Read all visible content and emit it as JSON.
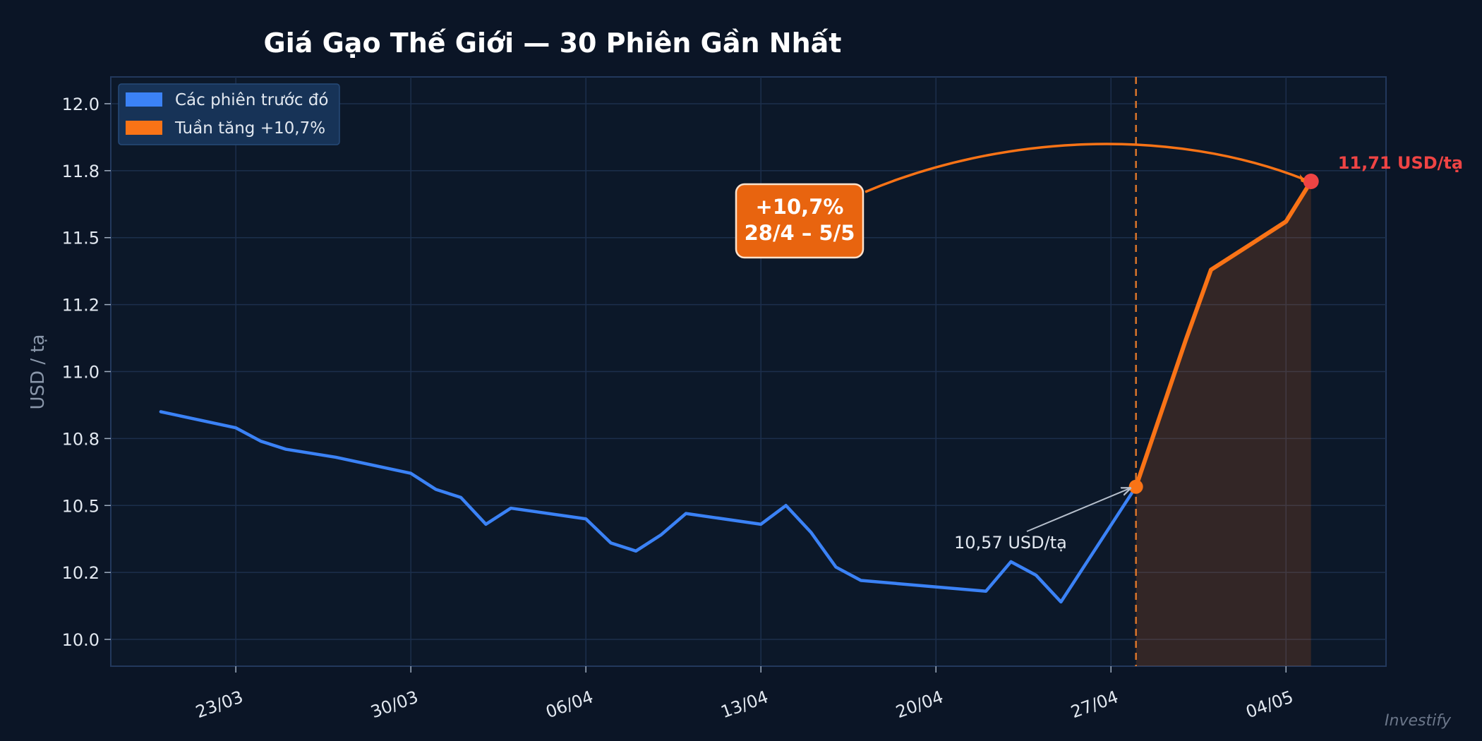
{
  "chart_data": {
    "type": "line",
    "title": "Giá Gạo Thế Giới — 30 Phiên Gần Nhất",
    "ylabel": "USD / tạ",
    "ylim": [
      9.9,
      12.1
    ],
    "y_ticks": [
      10.0,
      10.25,
      10.5,
      10.75,
      11.0,
      11.25,
      11.5,
      11.75,
      12.0
    ],
    "y_tick_labels": [
      "10.0",
      "10.2",
      "10.5",
      "10.8",
      "11.0",
      "11.2",
      "11.5",
      "11.8",
      "12.0"
    ],
    "xlim": [
      "2025-03-18",
      "2025-05-08"
    ],
    "x_ticks": [
      "2025-03-23",
      "2025-03-30",
      "2025-04-06",
      "2025-04-13",
      "2025-04-20",
      "2025-04-27",
      "2025-05-04"
    ],
    "x_tick_labels": [
      "23/03",
      "30/03",
      "06/04",
      "13/04",
      "20/04",
      "27/04",
      "04/05"
    ],
    "grid": true,
    "legend_position": "top-left",
    "series": [
      {
        "name": "Các phiên trước đó",
        "color": "#3b82f6",
        "points": [
          [
            "2025-03-20",
            10.85
          ],
          [
            "2025-03-23",
            10.79
          ],
          [
            "2025-03-24",
            10.74
          ],
          [
            "2025-03-25",
            10.71
          ],
          [
            "2025-03-27",
            10.68
          ],
          [
            "2025-03-30",
            10.62
          ],
          [
            "2025-03-31",
            10.56
          ],
          [
            "2025-04-01",
            10.53
          ],
          [
            "2025-04-02",
            10.43
          ],
          [
            "2025-04-03",
            10.49
          ],
          [
            "2025-04-06",
            10.45
          ],
          [
            "2025-04-07",
            10.36
          ],
          [
            "2025-04-08",
            10.33
          ],
          [
            "2025-04-09",
            10.39
          ],
          [
            "2025-04-10",
            10.47
          ],
          [
            "2025-04-13",
            10.43
          ],
          [
            "2025-04-14",
            10.5
          ],
          [
            "2025-04-15",
            10.4
          ],
          [
            "2025-04-16",
            10.27
          ],
          [
            "2025-04-17",
            10.22
          ],
          [
            "2025-04-22",
            10.18
          ],
          [
            "2025-04-23",
            10.29
          ],
          [
            "2025-04-24",
            10.24
          ],
          [
            "2025-04-25",
            10.14
          ],
          [
            "2025-04-28",
            10.57
          ]
        ]
      },
      {
        "name": "Tuần tăng +10,7%",
        "color": "#f97316",
        "points": [
          [
            "2025-04-28",
            10.57
          ],
          [
            "2025-04-30",
            11.12
          ],
          [
            "2025-05-01",
            11.38
          ],
          [
            "2025-05-04",
            11.56
          ],
          [
            "2025-05-05",
            11.71
          ]
        ]
      }
    ],
    "vertical_marker": "2025-04-28",
    "annotations": {
      "start_label": "10,57 USD/tạ",
      "end_label": "11,71 USD/tạ",
      "change_line1": "+10,7%",
      "change_line2": "28/4 – 5/5"
    },
    "watermark": "Investify"
  }
}
